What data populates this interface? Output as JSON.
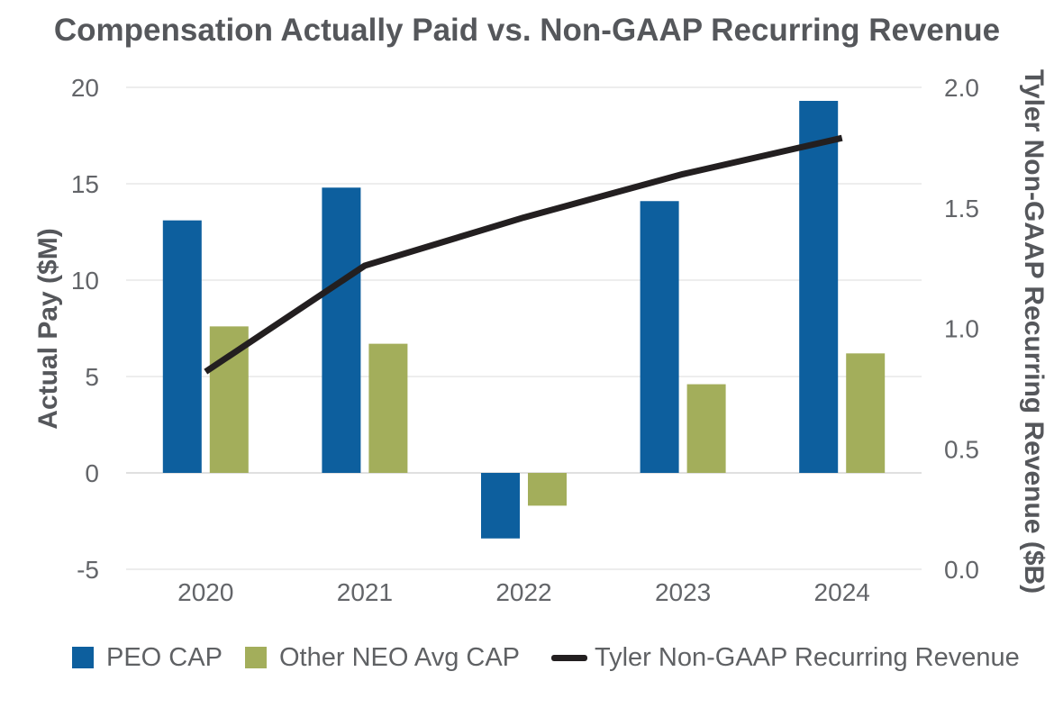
{
  "chart_data": {
    "type": "combo_bar_line",
    "title": "Compensation Actually Paid vs. Non-GAAP Recurring Revenue",
    "categories": [
      "2020",
      "2021",
      "2022",
      "2023",
      "2024"
    ],
    "series": [
      {
        "name": "PEO CAP",
        "type": "bar",
        "axis": "left",
        "color": "#0D5F9E",
        "values": [
          13.1,
          14.8,
          -3.4,
          14.1,
          19.3
        ]
      },
      {
        "name": "Other NEO Avg CAP",
        "type": "bar",
        "axis": "left",
        "color": "#A3AE5B",
        "values": [
          7.6,
          6.7,
          -1.7,
          4.6,
          6.2
        ]
      },
      {
        "name": "Tyler Non-GAAP Recurring Revenue",
        "type": "line",
        "axis": "right",
        "color": "#231F20",
        "values": [
          0.82,
          1.26,
          1.46,
          1.64,
          1.79
        ]
      }
    ],
    "left_axis": {
      "label": "Actual Pay ($M)",
      "min": -5,
      "max": 20,
      "tick_step": 5,
      "ticks": [
        "20",
        "15",
        "10",
        "5",
        "0",
        "-5"
      ]
    },
    "right_axis": {
      "label": "Tyler Non-GAAP Recurring Revenue ($B)",
      "min": 0.0,
      "max": 2.0,
      "tick_step": 0.5,
      "ticks": [
        "2.0",
        "1.5",
        "1.0",
        "0.5",
        "0.0"
      ]
    },
    "grid": true,
    "legend_position": "bottom",
    "colors": {
      "gridline": "#E7E7E7",
      "zero_line": "#D6D6D6",
      "title_text": "#55575B",
      "tick_text": "#636569",
      "legend_text": "#5F6164"
    }
  }
}
